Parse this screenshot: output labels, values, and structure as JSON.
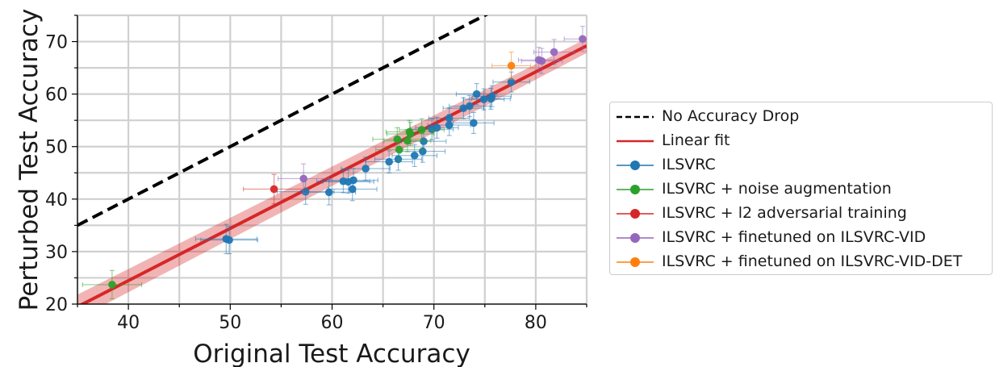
{
  "chart_data": {
    "type": "scatter",
    "xlabel": "Original Test Accuracy",
    "ylabel": "Perturbed Test Accuracy",
    "xlim": [
      35,
      85
    ],
    "ylim": [
      20,
      75
    ],
    "xticks": [
      40,
      50,
      60,
      70,
      80
    ],
    "yticks": [
      20,
      30,
      40,
      50,
      60,
      70
    ],
    "grid": true,
    "legend_position": "outside right",
    "reference_line": {
      "name": "No Accuracy Drop",
      "style": "dashed",
      "color": "#000000",
      "slope": 1,
      "intercept": 0
    },
    "linear_fit": {
      "name": "Linear fit",
      "color": "#d62728",
      "x_range": [
        35,
        85
      ],
      "y_range": [
        19.5,
        69.2
      ]
    },
    "series": [
      {
        "name": "ILSVRC",
        "color": "#1f77b4",
        "points": [
          {
            "x": 49.6,
            "y": 32.4,
            "xerr": 3.0,
            "yerr": 2.8
          },
          {
            "x": 49.9,
            "y": 32.2,
            "xerr": 2.8,
            "yerr": 2.6
          },
          {
            "x": 57.4,
            "y": 41.4,
            "xerr": 2.8,
            "yerr": 2.4
          },
          {
            "x": 59.7,
            "y": 41.3,
            "xerr": 2.6,
            "yerr": 2.4
          },
          {
            "x": 61.1,
            "y": 43.4,
            "xerr": 2.6,
            "yerr": 2.2
          },
          {
            "x": 61.6,
            "y": 43.3,
            "xerr": 2.5,
            "yerr": 2.2
          },
          {
            "x": 62.1,
            "y": 43.6,
            "xerr": 2.4,
            "yerr": 2.2
          },
          {
            "x": 62.0,
            "y": 41.9,
            "xerr": 2.4,
            "yerr": 2.2
          },
          {
            "x": 63.3,
            "y": 45.8,
            "xerr": 2.4,
            "yerr": 2.2
          },
          {
            "x": 65.6,
            "y": 47.1,
            "xerr": 2.3,
            "yerr": 2.1
          },
          {
            "x": 66.5,
            "y": 47.6,
            "xerr": 2.3,
            "yerr": 2.1
          },
          {
            "x": 68.1,
            "y": 48.3,
            "xerr": 2.2,
            "yerr": 2.1
          },
          {
            "x": 68.9,
            "y": 49.1,
            "xerr": 2.2,
            "yerr": 2.1
          },
          {
            "x": 69.0,
            "y": 51.0,
            "xerr": 2.2,
            "yerr": 2.1
          },
          {
            "x": 69.8,
            "y": 53.3,
            "xerr": 2.1,
            "yerr": 2.0
          },
          {
            "x": 70.3,
            "y": 53.6,
            "xerr": 2.1,
            "yerr": 2.0
          },
          {
            "x": 71.5,
            "y": 54.1,
            "xerr": 2.1,
            "yerr": 2.0
          },
          {
            "x": 71.5,
            "y": 55.4,
            "xerr": 2.0,
            "yerr": 2.0
          },
          {
            "x": 72.9,
            "y": 57.3,
            "xerr": 2.0,
            "yerr": 2.0
          },
          {
            "x": 73.5,
            "y": 57.7,
            "xerr": 2.0,
            "yerr": 2.0
          },
          {
            "x": 73.9,
            "y": 54.5,
            "xerr": 2.0,
            "yerr": 2.0
          },
          {
            "x": 74.2,
            "y": 60.0,
            "xerr": 2.0,
            "yerr": 2.0
          },
          {
            "x": 74.9,
            "y": 59.0,
            "xerr": 2.0,
            "yerr": 2.0
          },
          {
            "x": 75.6,
            "y": 59.1,
            "xerr": 1.9,
            "yerr": 2.0
          },
          {
            "x": 75.7,
            "y": 59.6,
            "xerr": 1.9,
            "yerr": 2.0
          },
          {
            "x": 77.6,
            "y": 62.3,
            "xerr": 1.8,
            "yerr": 1.9
          }
        ]
      },
      {
        "name": "ILSVRC + noise augmentation",
        "color": "#2ca02c",
        "points": [
          {
            "x": 38.4,
            "y": 23.7,
            "xerr": 2.9,
            "yerr": 2.7
          },
          {
            "x": 66.4,
            "y": 51.4,
            "xerr": 2.4,
            "yerr": 2.2
          },
          {
            "x": 67.6,
            "y": 52.8,
            "xerr": 2.3,
            "yerr": 2.2
          },
          {
            "x": 67.7,
            "y": 52.4,
            "xerr": 2.3,
            "yerr": 2.2
          },
          {
            "x": 68.8,
            "y": 53.2,
            "xerr": 2.2,
            "yerr": 2.1
          },
          {
            "x": 67.4,
            "y": 51.1,
            "xerr": 2.3,
            "yerr": 2.1
          },
          {
            "x": 66.6,
            "y": 49.4,
            "xerr": 2.3,
            "yerr": 2.1
          }
        ]
      },
      {
        "name": "ILSVRC + l2 adversarial training",
        "color": "#d62728",
        "points": [
          {
            "x": 54.3,
            "y": 41.9,
            "xerr": 3.0,
            "yerr": 2.8
          }
        ]
      },
      {
        "name": "ILSVRC + finetuned on ILSVRC-VID",
        "color": "#9467bd",
        "points": [
          {
            "x": 57.2,
            "y": 43.9,
            "xerr": 2.5,
            "yerr": 2.8
          },
          {
            "x": 80.3,
            "y": 66.5,
            "xerr": 2.0,
            "yerr": 2.4
          },
          {
            "x": 80.6,
            "y": 66.3,
            "xerr": 2.0,
            "yerr": 2.4
          },
          {
            "x": 81.8,
            "y": 68.0,
            "xerr": 2.0,
            "yerr": 2.4
          },
          {
            "x": 84.6,
            "y": 70.5,
            "xerr": 1.8,
            "yerr": 2.4
          }
        ]
      },
      {
        "name": "ILSVRC + finetuned on ILSVRC-VID-DET",
        "color": "#ff7f0e",
        "points": [
          {
            "x": 77.6,
            "y": 65.4,
            "xerr": 1.9,
            "yerr": 2.6
          }
        ]
      }
    ]
  },
  "legend": {
    "items": [
      {
        "label": "No Accuracy Drop"
      },
      {
        "label": "Linear fit"
      },
      {
        "label": "ILSVRC"
      },
      {
        "label": "ILSVRC + noise augmentation"
      },
      {
        "label": "ILSVRC + l2 adversarial training"
      },
      {
        "label": "ILSVRC + finetuned on ILSVRC-VID"
      },
      {
        "label": "ILSVRC + finetuned on ILSVRC-VID-DET"
      }
    ]
  }
}
